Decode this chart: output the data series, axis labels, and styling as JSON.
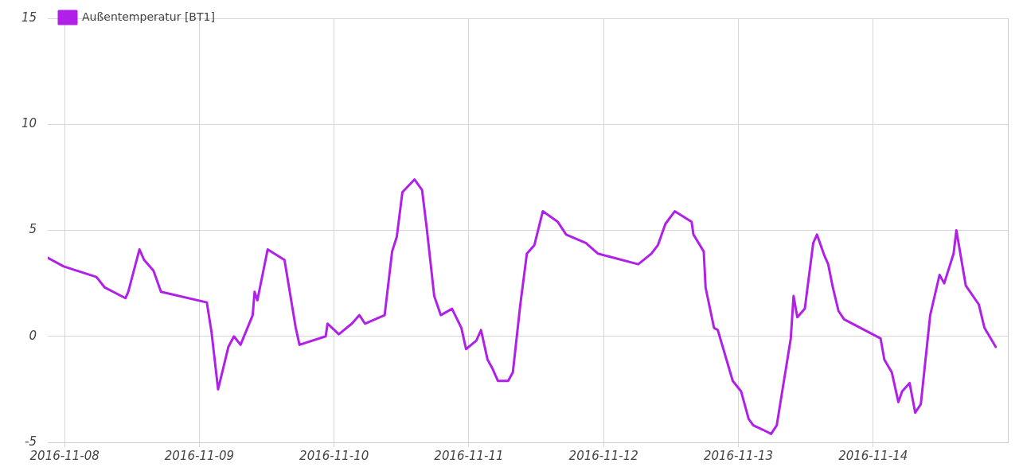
{
  "chart_data": {
    "type": "line",
    "legend": "top left",
    "grid": true,
    "marker": "none",
    "line_style": "solid",
    "xlim": [
      "2016-11-07T21:00",
      "2016-11-15T00:00"
    ],
    "xticks": [
      "2016-11-08",
      "2016-11-09",
      "2016-11-10",
      "2016-11-11",
      "2016-11-12",
      "2016-11-13",
      "2016-11-14"
    ],
    "ylim": [
      -5,
      15
    ],
    "yticks": [
      -5,
      0,
      5,
      10,
      15
    ],
    "series": [
      {
        "name": "Außentemperatur [BT1]",
        "color": "#b020e8",
        "x": [
          "2016-11-07T21:00",
          "2016-11-07T23:50",
          "2016-11-08T05:40",
          "2016-11-08T07:10",
          "2016-11-08T10:50",
          "2016-11-08T11:20",
          "2016-11-08T13:20",
          "2016-11-08T14:10",
          "2016-11-08T15:50",
          "2016-11-08T17:10",
          "2016-11-09T01:20",
          "2016-11-09T02:10",
          "2016-11-09T03:20",
          "2016-11-09T05:10",
          "2016-11-09T06:10",
          "2016-11-09T07:20",
          "2016-11-09T09:30",
          "2016-11-09T09:50",
          "2016-11-09T10:20",
          "2016-11-09T12:10",
          "2016-11-09T15:10",
          "2016-11-09T17:10",
          "2016-11-09T17:50",
          "2016-11-09T22:30",
          "2016-11-09T22:50",
          "2016-11-10T00:50",
          "2016-11-10T03:10",
          "2016-11-10T04:30",
          "2016-11-10T05:30",
          "2016-11-10T09:00",
          "2016-11-10T10:20",
          "2016-11-10T11:10",
          "2016-11-10T12:10",
          "2016-11-10T14:20",
          "2016-11-10T15:40",
          "2016-11-10T16:30",
          "2016-11-10T17:50",
          "2016-11-10T19:00",
          "2016-11-10T21:00",
          "2016-11-10T22:40",
          "2016-11-10T23:30",
          "2016-11-11T01:20",
          "2016-11-11T02:10",
          "2016-11-11T03:20",
          "2016-11-11T04:10",
          "2016-11-11T05:10",
          "2016-11-11T07:00",
          "2016-11-11T07:50",
          "2016-11-11T09:10",
          "2016-11-11T10:20",
          "2016-11-11T11:40",
          "2016-11-11T13:10",
          "2016-11-11T15:50",
          "2016-11-11T17:20",
          "2016-11-11T20:50",
          "2016-11-11T23:00",
          "2016-11-12T06:10",
          "2016-11-12T08:30",
          "2016-11-12T09:40",
          "2016-11-12T11:00",
          "2016-11-12T12:40",
          "2016-11-12T15:40",
          "2016-11-12T16:00",
          "2016-11-12T17:50",
          "2016-11-12T18:10",
          "2016-11-12T19:40",
          "2016-11-12T20:20",
          "2016-11-12T23:00",
          "2016-11-13T00:30",
          "2016-11-13T01:50",
          "2016-11-13T02:40",
          "2016-11-13T04:20",
          "2016-11-13T05:50",
          "2016-11-13T06:50",
          "2016-11-13T08:40",
          "2016-11-13T09:20",
          "2016-11-13T09:50",
          "2016-11-13T10:30",
          "2016-11-13T11:50",
          "2016-11-13T13:20",
          "2016-11-13T14:00",
          "2016-11-13T15:20",
          "2016-11-13T16:00",
          "2016-11-13T16:50",
          "2016-11-13T17:50",
          "2016-11-13T18:50",
          "2016-11-14T01:20",
          "2016-11-14T02:00",
          "2016-11-14T03:20",
          "2016-11-14T04:30",
          "2016-11-14T05:10",
          "2016-11-14T06:30",
          "2016-11-14T07:30",
          "2016-11-14T08:30",
          "2016-11-14T10:10",
          "2016-11-14T11:50",
          "2016-11-14T12:40",
          "2016-11-14T14:20",
          "2016-11-14T14:50",
          "2016-11-14T16:30",
          "2016-11-14T18:50",
          "2016-11-14T19:50",
          "2016-11-14T21:50"
        ],
        "values": [
          3.7,
          3.3,
          2.8,
          2.3,
          1.8,
          2.1,
          4.1,
          3.6,
          3.1,
          2.1,
          1.6,
          0.2,
          -2.5,
          -0.5,
          0.0,
          -0.4,
          1.0,
          2.1,
          1.7,
          4.1,
          3.6,
          0.4,
          -0.4,
          0.0,
          0.6,
          0.1,
          0.6,
          1.0,
          0.6,
          1.0,
          4.0,
          4.7,
          6.8,
          7.4,
          6.9,
          5.1,
          1.9,
          1.0,
          1.3,
          0.4,
          -0.6,
          -0.2,
          0.3,
          -1.1,
          -1.5,
          -2.1,
          -2.1,
          -1.7,
          1.5,
          3.9,
          4.3,
          5.9,
          5.4,
          4.8,
          4.4,
          3.9,
          3.4,
          3.9,
          4.3,
          5.3,
          5.9,
          5.4,
          4.8,
          4.0,
          2.3,
          0.4,
          0.3,
          -2.1,
          -2.6,
          -3.9,
          -4.2,
          -4.4,
          -4.6,
          -4.2,
          -1.2,
          -0.1,
          1.9,
          0.9,
          1.3,
          4.4,
          4.8,
          3.8,
          3.4,
          2.3,
          1.2,
          0.8,
          -0.1,
          -1.1,
          -1.7,
          -3.1,
          -2.6,
          -2.2,
          -3.6,
          -3.2,
          1.0,
          2.9,
          2.5,
          3.9,
          5.0,
          2.4,
          1.5,
          0.4,
          -0.5
        ]
      }
    ]
  }
}
